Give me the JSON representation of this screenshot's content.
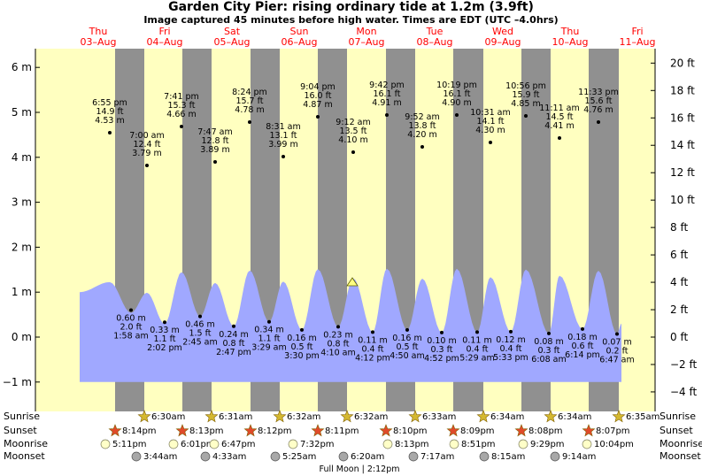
{
  "title": "Garden City Pier: rising  ordinary tide at 1.2m (3.9ft)",
  "subtitle": "Image captured 45 minutes before high water. Times are EDT (UTC –4.0hrs)",
  "colors": {
    "day": "#ffffc0",
    "night": "#909090",
    "water": "#a0a8ff",
    "date_text": "#ff0000",
    "axis": "#000000",
    "star": "#d4b830",
    "sunset_star": "#e04a2a",
    "moonrise": "#ffffc8",
    "moonset": "#a8a8a8",
    "now_marker": "#ffff80"
  },
  "chart_data": {
    "type": "area",
    "title": "Garden City Pier: rising  ordinary tide at 1.2m (3.9ft)",
    "y_left_unit": "m",
    "y_right_unit": "ft",
    "y_left_ticks": [
      "−1 m",
      "0 m",
      "1 m",
      "2 m",
      "3 m",
      "4 m",
      "5 m",
      "6 m"
    ],
    "y_right_ticks": [
      "−4 ft",
      "−2 ft",
      "0 ft",
      "2 ft",
      "4 ft",
      "6 ft",
      "8 ft",
      "10 ft",
      "12 ft",
      "14 ft",
      "16 ft",
      "18 ft",
      "20 ft"
    ],
    "ylim_m": [
      -1.2,
      6.3
    ],
    "days": [
      {
        "dow": "Thu",
        "date": "03–Aug"
      },
      {
        "dow": "Fri",
        "date": "04–Aug"
      },
      {
        "dow": "Sat",
        "date": "05–Aug"
      },
      {
        "dow": "Sun",
        "date": "06–Aug"
      },
      {
        "dow": "Mon",
        "date": "07–Aug"
      },
      {
        "dow": "Tue",
        "date": "08–Aug"
      },
      {
        "dow": "Wed",
        "date": "09–Aug"
      },
      {
        "dow": "Thu",
        "date": "10–Aug"
      },
      {
        "dow": "Fri",
        "date": "11–Aug"
      }
    ],
    "high_tides": [
      {
        "time": "6:55 pm",
        "ft": "14.9 ft",
        "m": "4.53 m",
        "day": "Thu",
        "value_m": 4.53
      },
      {
        "time": "7:00 am",
        "ft": "12.4 ft",
        "m": "3.79 m",
        "day": "Fri",
        "value_m": 3.79
      },
      {
        "time": "7:41 pm",
        "ft": "15.3 ft",
        "m": "4.66 m",
        "day": "Fri",
        "value_m": 4.66
      },
      {
        "time": "7:47 am",
        "ft": "12.8 ft",
        "m": "3.89 m",
        "day": "Sat",
        "value_m": 3.89
      },
      {
        "time": "8:24 pm",
        "ft": "15.7 ft",
        "m": "4.78 m",
        "day": "Sat",
        "value_m": 4.78
      },
      {
        "time": "8:31 am",
        "ft": "13.1 ft",
        "m": "3.99 m",
        "day": "Sun",
        "value_m": 3.99
      },
      {
        "time": "9:04 pm",
        "ft": "16.0 ft",
        "m": "4.87 m",
        "day": "Sun",
        "value_m": 4.87
      },
      {
        "time": "9:12 am",
        "ft": "13.5 ft",
        "m": "4.10 m",
        "day": "Mon",
        "value_m": 4.1
      },
      {
        "time": "9:42 pm",
        "ft": "16.1 ft",
        "m": "4.91 m",
        "day": "Mon",
        "value_m": 4.91
      },
      {
        "time": "9:52 am",
        "ft": "13.8 ft",
        "m": "4.20 m",
        "day": "Tue",
        "value_m": 4.2
      },
      {
        "time": "10:19 pm",
        "ft": "16.1 ft",
        "m": "4.90 m",
        "day": "Tue",
        "value_m": 4.9
      },
      {
        "time": "10:31 am",
        "ft": "14.1 ft",
        "m": "4.30 m",
        "day": "Wed",
        "value_m": 4.3
      },
      {
        "time": "10:56 pm",
        "ft": "15.9 ft",
        "m": "4.85 m",
        "day": "Wed",
        "value_m": 4.85
      },
      {
        "time": "11:11 am",
        "ft": "14.5 ft",
        "m": "4.41 m",
        "day": "Thu",
        "value_m": 4.41
      },
      {
        "time": "11:33 pm",
        "ft": "15.6 ft",
        "m": "4.76 m",
        "day": "Thu",
        "value_m": 4.76
      }
    ],
    "low_tides": [
      {
        "time": "1:58 am",
        "ft": "2.0 ft",
        "m": "0.60 m",
        "day": "Fri",
        "value_m": 0.6
      },
      {
        "time": "2:02 pm",
        "ft": "1.1 ft",
        "m": "0.33 m",
        "day": "Fri",
        "value_m": 0.33
      },
      {
        "time": "2:45 am",
        "ft": "1.5 ft",
        "m": "0.46 m",
        "day": "Sat",
        "value_m": 0.46
      },
      {
        "time": "2:47 pm",
        "ft": "0.8 ft",
        "m": "0.24 m",
        "day": "Sat",
        "value_m": 0.24
      },
      {
        "time": "3:29 am",
        "ft": "1.1 ft",
        "m": "0.34 m",
        "day": "Sun",
        "value_m": 0.34
      },
      {
        "time": "3:30 pm",
        "ft": "0.5 ft",
        "m": "0.16 m",
        "day": "Sun",
        "value_m": 0.16
      },
      {
        "time": "4:10 am",
        "ft": "0.8 ft",
        "m": "0.23 m",
        "day": "Mon",
        "value_m": 0.23
      },
      {
        "time": "4:12 pm",
        "ft": "0.4 ft",
        "m": "0.11 m",
        "day": "Mon",
        "value_m": 0.11
      },
      {
        "time": "4:50 am",
        "ft": "0.5 ft",
        "m": "0.16 m",
        "day": "Tue",
        "value_m": 0.16
      },
      {
        "time": "4:52 pm",
        "ft": "0.3 ft",
        "m": "0.10 m",
        "day": "Tue",
        "value_m": 0.1
      },
      {
        "time": "5:29 am",
        "ft": "0.4 ft",
        "m": "0.11 m",
        "day": "Wed",
        "value_m": 0.11
      },
      {
        "time": "5:33 pm",
        "ft": "0.4 ft",
        "m": "0.12 m",
        "day": "Wed",
        "value_m": 0.12
      },
      {
        "time": "6:08 am",
        "ft": "0.3 ft",
        "m": "0.08 m",
        "day": "Thu",
        "value_m": 0.08
      },
      {
        "time": "6:14 pm",
        "ft": "0.6 ft",
        "m": "0.18 m",
        "day": "Thu",
        "value_m": 0.18
      },
      {
        "time": "6:47 am",
        "ft": "0.2 ft",
        "m": "0.07 m",
        "day": "Fri",
        "value_m": 0.07
      }
    ]
  },
  "astro": {
    "row_labels": [
      "Sunrise",
      "Sunset",
      "Moonrise",
      "Moonset"
    ],
    "sunrise": [
      "6:30am",
      "6:31am",
      "6:32am",
      "6:32am",
      "6:33am",
      "6:34am",
      "6:34am",
      "6:35am"
    ],
    "sunset": [
      "8:14pm",
      "8:13pm",
      "8:12pm",
      "8:11pm",
      "8:10pm",
      "8:09pm",
      "8:08pm",
      "8:07pm"
    ],
    "moonrise": [
      "5:11pm",
      "6:01pm",
      "6:47pm",
      "7:32pm",
      "8:13pm",
      "8:51pm",
      "9:29pm",
      "10:04pm"
    ],
    "moonset": [
      "3:44am",
      "4:33am",
      "5:25am",
      "6:20am",
      "7:17am",
      "8:15am",
      "9:14am"
    ],
    "full_moon": "Full Moon | 2:12pm"
  }
}
